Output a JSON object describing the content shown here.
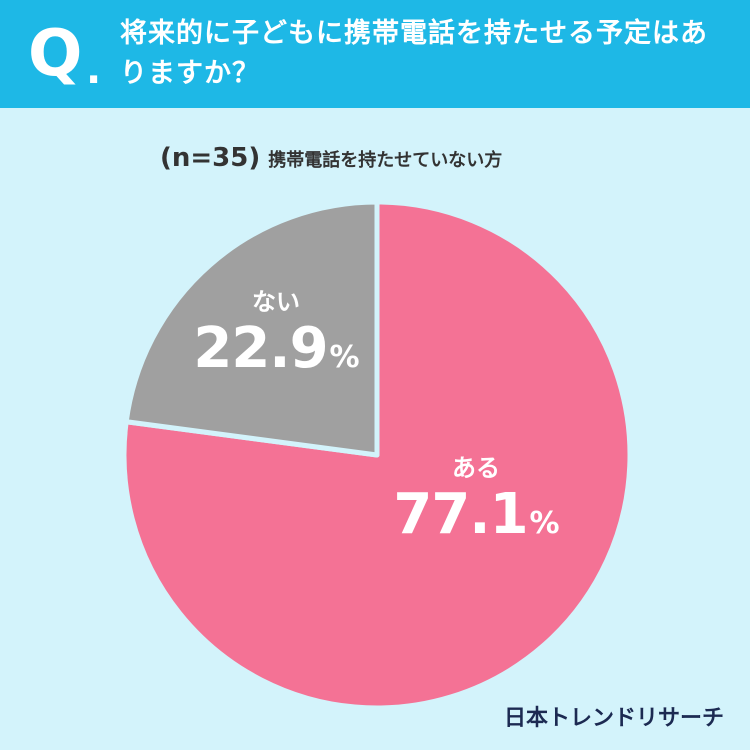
{
  "header": {
    "q_mark": "Q",
    "q_dot": ".",
    "question": "将来的に子どもに携帯電話を持たせる予定はありますか？"
  },
  "sample": {
    "n_label": "(n=35)",
    "description": "携帯電話を持たせていない方"
  },
  "logo": "日本トレンドリサーチ",
  "colors": {
    "header": "#1eb8e6",
    "background": "#d3f3fb",
    "aru": "#f47295",
    "nai": "#a0a0a0"
  },
  "chart_data": {
    "type": "pie",
    "slices": [
      {
        "name": "ある",
        "value": 77.1,
        "value_label": "77.1",
        "unit": "%",
        "color": "#f47295"
      },
      {
        "name": "ない",
        "value": 22.9,
        "value_label": "22.9",
        "unit": "%",
        "color": "#a0a0a0"
      }
    ]
  }
}
